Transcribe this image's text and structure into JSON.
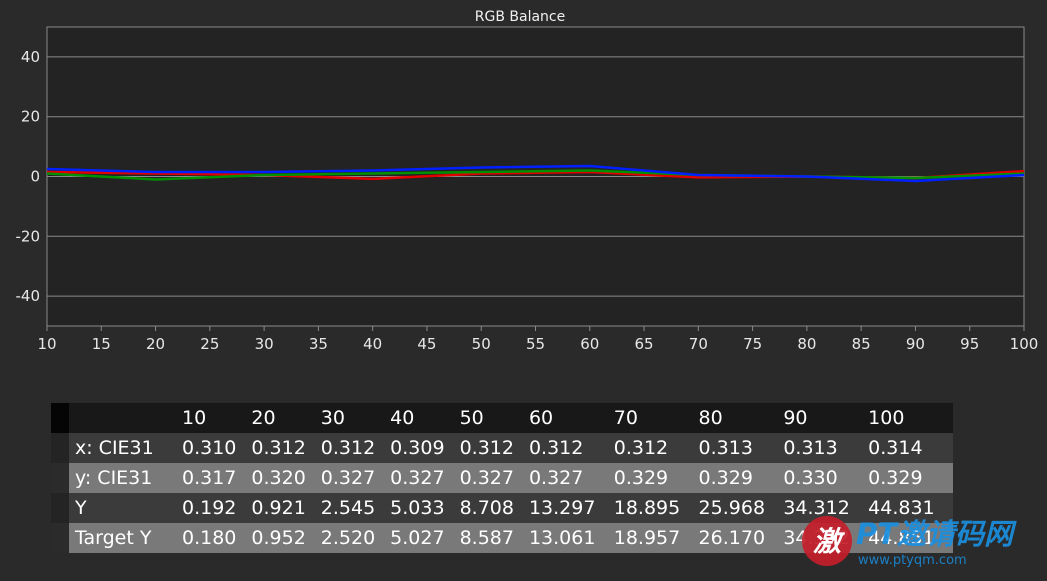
{
  "chart_data": {
    "type": "line",
    "title": "RGB Balance",
    "x": [
      10,
      20,
      30,
      40,
      50,
      60,
      70,
      80,
      90,
      100
    ],
    "x_ticks": [
      10,
      15,
      20,
      25,
      30,
      35,
      40,
      45,
      50,
      55,
      60,
      65,
      70,
      75,
      80,
      85,
      90,
      95,
      100
    ],
    "y_ticks": [
      40,
      20,
      0,
      -20,
      -40
    ],
    "xlim": [
      10,
      100
    ],
    "ylim": [
      -50,
      50
    ],
    "grid": true,
    "legend": "none",
    "series": [
      {
        "color": "#e00000",
        "values": [
          1.5,
          1.0,
          0.5,
          -0.8,
          1.0,
          1.5,
          -0.3,
          0.0,
          -0.5,
          1.8
        ]
      },
      {
        "color": "#009000",
        "values": [
          1.0,
          -1.0,
          0.5,
          1.0,
          1.5,
          2.0,
          0.5,
          0.0,
          -0.5,
          1.0
        ]
      },
      {
        "color": "#0020ff",
        "values": [
          2.5,
          1.5,
          1.5,
          2.0,
          3.0,
          3.5,
          0.5,
          0.0,
          -1.5,
          0.5
        ]
      }
    ]
  },
  "table": {
    "columns": [
      "10",
      "20",
      "30",
      "40",
      "50",
      "60",
      "70",
      "80",
      "90",
      "100"
    ],
    "rows": [
      {
        "label": "x: CIE31",
        "values": [
          "0.310",
          "0.312",
          "0.312",
          "0.309",
          "0.312",
          "0.312",
          "0.312",
          "0.313",
          "0.313",
          "0.314"
        ]
      },
      {
        "label": "y: CIE31",
        "values": [
          "0.317",
          "0.320",
          "0.327",
          "0.327",
          "0.327",
          "0.327",
          "0.329",
          "0.329",
          "0.330",
          "0.329"
        ]
      },
      {
        "label": "Y",
        "values": [
          "0.192",
          "0.921",
          "2.545",
          "5.033",
          "8.708",
          "13.297",
          "18.895",
          "25.968",
          "34.312",
          "44.831"
        ]
      },
      {
        "label": "Target Y",
        "values": [
          "0.180",
          "0.952",
          "2.520",
          "5.027",
          "8.587",
          "13.061",
          "18.957",
          "26.170",
          "34.372",
          "44.851"
        ]
      }
    ]
  },
  "watermark": {
    "mark": "激",
    "title": "PT邀请码网",
    "url": "www.ptyqm.com"
  }
}
